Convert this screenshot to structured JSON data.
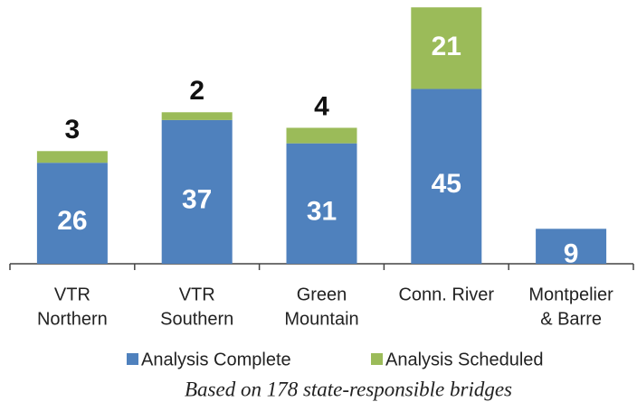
{
  "chart_data": {
    "type": "stacked_bar",
    "categories": [
      [
        "VTR",
        "Northern"
      ],
      [
        "VTR",
        "Southern"
      ],
      [
        "Green",
        "Mountain"
      ],
      [
        "Conn. River"
      ],
      [
        "Montpelier",
        "& Barre"
      ]
    ],
    "series": [
      {
        "name": "Analysis Complete",
        "color": "#4f81bd",
        "values": [
          26,
          37,
          31,
          45,
          9
        ]
      },
      {
        "name": "Analysis Scheduled",
        "color": "#9bbb59",
        "values": [
          3,
          2,
          4,
          21,
          null
        ]
      }
    ],
    "ylim": [
      0,
      66.5
    ],
    "note": "Based on 178 state-responsible bridges"
  }
}
